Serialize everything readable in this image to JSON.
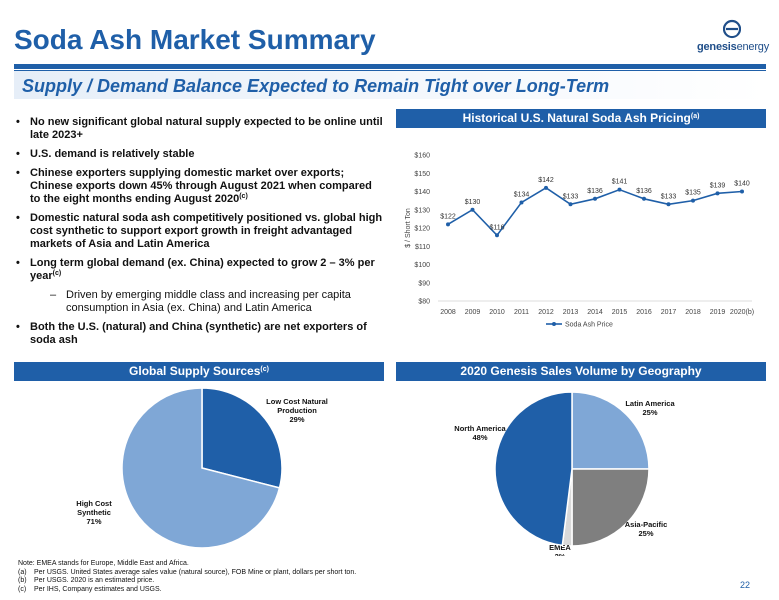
{
  "header": {
    "title": "Soda Ash Market Summary",
    "subtitle": "Supply / Demand Balance Expected to Remain Tight over Long-Term",
    "logo_text_a": "genesis",
    "logo_text_b": "energy"
  },
  "bullets": [
    {
      "text": "No new significant global natural supply expected to be online until late 2023+",
      "sup": ""
    },
    {
      "text": "U.S. demand is relatively stable",
      "sup": ""
    },
    {
      "text": "Chinese exporters supplying domestic market over exports; Chinese exports down 45% through August 2021 when compared to the eight months ending August 2020",
      "sup": "(c)"
    },
    {
      "text": "Domestic natural soda ash competitively positioned vs. global high cost synthetic to support export growth in freight advantaged markets of Asia and Latin America",
      "sup": ""
    },
    {
      "text": "Long term global demand (ex. China) expected to grow 2 – 3% per year",
      "sup": "(c)"
    }
  ],
  "sub_bullet": "Driven by emerging middle class and increasing per capita consumption in Asia (ex. China) and Latin America",
  "bullet_last": "Both the U.S. (natural) and China (synthetic) are net exporters of soda ash",
  "sections": {
    "pricing_header": "Historical U.S. Natural Soda Ash Pricing",
    "pricing_sup": "(a)",
    "supply_header": "Global Supply Sources",
    "supply_sup": "(c)",
    "sales_header": "2020 Genesis Sales Volume by Geography"
  },
  "chart_data": [
    {
      "type": "line",
      "title": "",
      "ylabel": "$ / Short Ton",
      "x": [
        "2008",
        "2009",
        "2010",
        "2011",
        "2012",
        "2013",
        "2014",
        "2015",
        "2016",
        "2017",
        "2018",
        "2019",
        "2020(b)"
      ],
      "series": [
        {
          "name": "Soda Ash Price",
          "values": [
            122,
            130,
            116,
            134,
            142,
            133,
            136,
            141,
            136,
            133,
            135,
            139,
            140
          ]
        }
      ],
      "data_labels": [
        "$122",
        "$130",
        "$116",
        "$134",
        "$142",
        "$133",
        "$136",
        "$141",
        "$136",
        "$133",
        "$135",
        "$139",
        "$140"
      ],
      "ylim": [
        80,
        160
      ],
      "yticks": [
        "$80",
        "$90",
        "$100",
        "$110",
        "$120",
        "$130",
        "$140",
        "$150",
        "$160"
      ],
      "grid": false,
      "legend": "bottom",
      "color": "#1f5fa8"
    },
    {
      "type": "pie",
      "slices": [
        {
          "label_lines": [
            "Low Cost Natural",
            "Production",
            "29%"
          ],
          "value": 29,
          "color": "#1f5fa8"
        },
        {
          "label_lines": [
            "High Cost",
            "Synthetic",
            "71%"
          ],
          "value": 71,
          "color": "#7fa7d6"
        }
      ]
    },
    {
      "type": "pie",
      "slices": [
        {
          "label_lines": [
            "Latin America",
            "25%"
          ],
          "value": 25,
          "color": "#7fa7d6"
        },
        {
          "label_lines": [
            "Asia-Pacific",
            "25%"
          ],
          "value": 25,
          "color": "#7f7f7f"
        },
        {
          "label_lines": [
            "EMEA",
            "2%"
          ],
          "value": 2,
          "color": "#d9d9d9"
        },
        {
          "label_lines": [
            "North America",
            "48%"
          ],
          "value": 48,
          "color": "#1f5fa8"
        }
      ]
    }
  ],
  "notes": {
    "intro": "Note: EMEA stands for Europe, Middle East and Africa.",
    "rows": [
      {
        "k": "(a)",
        "v": "Per USGS.  United States average sales value (natural source), FOB Mine or plant, dollars per short ton."
      },
      {
        "k": "(b)",
        "v": "Per USGS.  2020 is an estimated price."
      },
      {
        "k": "(c)",
        "v": "Per IHS, Company estimates and USGS."
      }
    ]
  },
  "page_number": "22"
}
